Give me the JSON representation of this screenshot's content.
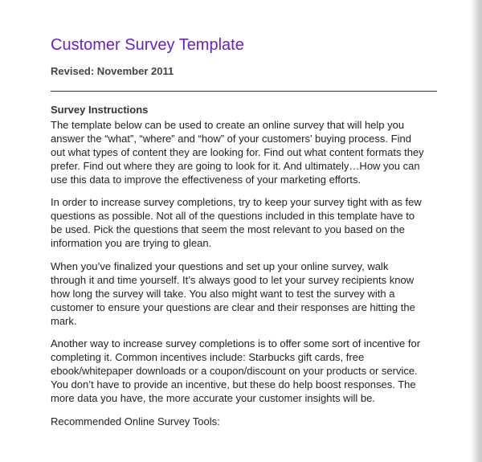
{
  "header": {
    "title": "Customer Survey Template",
    "revised": "Revised: November 2011"
  },
  "section": {
    "heading": "Survey Instructions",
    "paragraphs": [
      [
        "The template below can be used to create an online survey that will help you",
        "answer the “what”, “where” and “how” of your customers’ buying process. Find",
        "out what types of content they are looking for. Find out what content formats they",
        "prefer. Find out where they are going to look for it. And ultimately…How you can",
        "use this data to improve the effectiveness of your marketing efforts."
      ],
      [
        "In order to increase survey completions, try to keep your survey tight with as few",
        "questions as possible. Not all of the questions included in this template have to",
        "be used. Pick the questions that seem the most relevant to you based on the",
        "information you are trying to glean."
      ],
      [
        "When you’ve finalized your questions and set up your online survey, walk",
        "through it and time yourself. It’s always good to let your survey recipients know",
        "how long the survey will take. You also might want to test the survey with a",
        "customer to ensure your questions are clear and their responses are hitting the",
        "mark."
      ],
      [
        "Another way to increase survey completions is to offer some sort of incentive for",
        "completing it. Common incentives include: Starbucks gift cards, free",
        "ebook/whitepaper downloads or a coupon/discount on your products or service.",
        "You don’t have to provide an incentive, but these do help boost responses. The",
        "more data you have, the more accurate your customer insights will be."
      ],
      [
        "Recommended Online Survey Tools:"
      ]
    ]
  }
}
